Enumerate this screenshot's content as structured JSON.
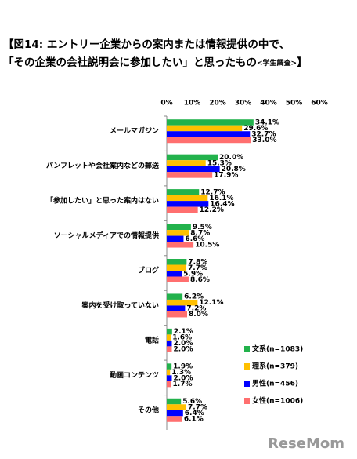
{
  "chart_data": {
    "type": "hbar",
    "title": [
      "【図14: エントリー企業からの案内または情報提供の中で、",
      "「その企業の会社説明会に参加したい」と思ったもの"
    ],
    "title_note": "<学生調査>",
    "title_close": "】",
    "categories": [
      "メールマガジン",
      "パンフレットや会社案内などの郵送",
      "「参加したい」と思った案内はない",
      "ソーシャルメディアでの情報提供",
      "ブログ",
      "案内を受け取っていない",
      "電話",
      "動画コンテンツ",
      "その他"
    ],
    "series": [
      {
        "name": "文系(n=1083)",
        "color": "#22b24c",
        "values": [
          34.1,
          20.0,
          12.7,
          9.5,
          7.8,
          6.2,
          2.1,
          1.9,
          5.6
        ],
        "value_labels": [
          "34.1%",
          "20.0%",
          "12.7%",
          "9.5%",
          "7.8%",
          "6.2%",
          "2.1%",
          "1.9%",
          "5.6%"
        ]
      },
      {
        "name": "理系(n=379)",
        "color": "#ffc000",
        "values": [
          29.6,
          15.3,
          16.1,
          8.7,
          7.7,
          12.1,
          1.6,
          1.3,
          7.7
        ],
        "value_labels": [
          "29.6%",
          "15.3%",
          "16.1%",
          "8.7%",
          "7.7%",
          "12.1%",
          "1.6%",
          "1.3%",
          "7.7%"
        ]
      },
      {
        "name": "男性(n=456)",
        "color": "#0000ff",
        "values": [
          32.7,
          20.8,
          16.4,
          6.6,
          5.9,
          7.2,
          2.0,
          2.0,
          6.4
        ],
        "value_labels": [
          "32.7%",
          "20.8%",
          "16.4%",
          "6.6%",
          "5.9%",
          "7.2%",
          "2.0%",
          "2.0%",
          "6.4%"
        ]
      },
      {
        "name": "女性(n=1006)",
        "color": "#ff6f6f",
        "values": [
          33.0,
          17.9,
          12.2,
          10.5,
          8.6,
          8.0,
          2.0,
          1.7,
          6.1
        ],
        "value_labels": [
          "33.0%",
          "17.9%",
          "12.2%",
          "10.5%",
          "8.6%",
          "8.0%",
          "2.0%",
          "1.7%",
          "6.1%"
        ]
      }
    ],
    "xlim": [
      0,
      60
    ],
    "xticks": [
      {
        "value": 0,
        "label": "0%"
      },
      {
        "value": 10,
        "label": "10%"
      },
      {
        "value": 20,
        "label": "20%"
      },
      {
        "value": 30,
        "label": "30%"
      },
      {
        "value": 40,
        "label": "40%"
      },
      {
        "value": 50,
        "label": "50%"
      },
      {
        "value": 60,
        "label": "60%"
      }
    ],
    "legend": "bottom-right",
    "watermark": "ReseMom"
  }
}
